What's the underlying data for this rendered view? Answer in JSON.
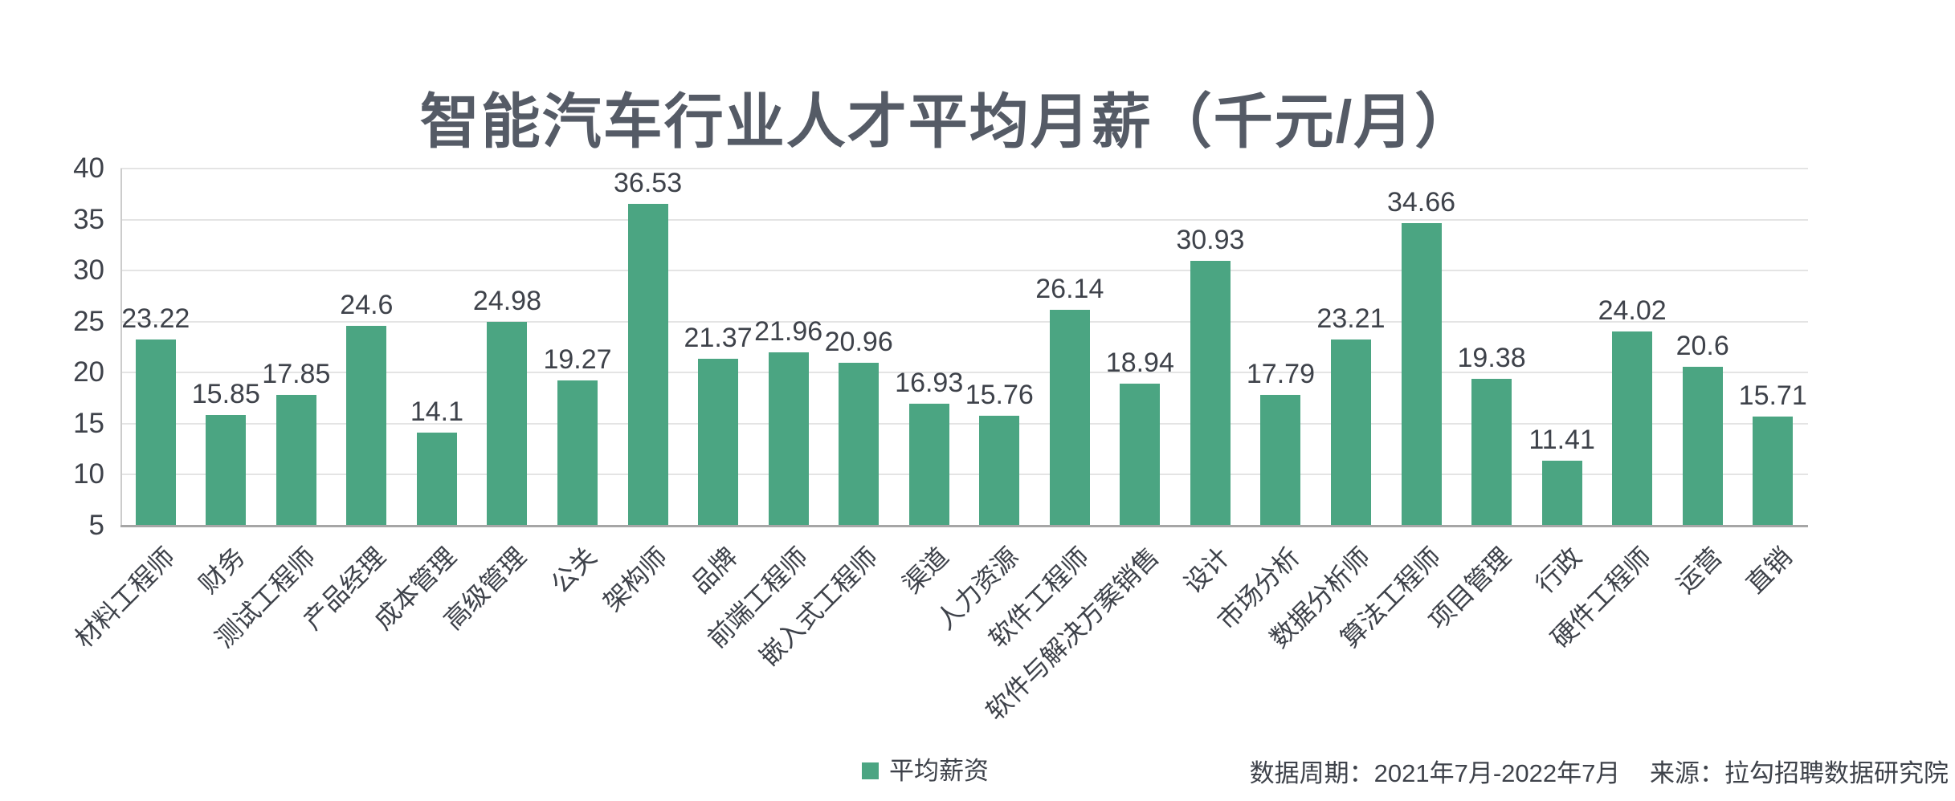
{
  "title": "智能汽车行业人才平均月薪（千元/月）",
  "legend": {
    "label": "平均薪资",
    "color": "#4ba582"
  },
  "footer": {
    "period": "数据周期：2021年7月-2022年7月",
    "source": "来源：拉勾招聘数据研究院"
  },
  "chart_data": {
    "type": "bar",
    "title": "智能汽车行业人才平均月薪（千元/月）",
    "series_name": "平均薪资",
    "categories": [
      "材料工程师",
      "财务",
      "测试工程师",
      "产品经理",
      "成本管理",
      "高级管理",
      "公关",
      "架构师",
      "品牌",
      "前端工程师",
      "嵌入式工程师",
      "渠道",
      "人力资源",
      "软件工程师",
      "软件与解决方案销售",
      "设计",
      "市场分析",
      "数据分析师",
      "算法工程师",
      "项目管理",
      "行政",
      "硬件工程师",
      "运营",
      "直销"
    ],
    "values": [
      23.22,
      15.85,
      17.85,
      24.6,
      14.1,
      24.98,
      19.27,
      36.53,
      21.37,
      21.96,
      20.96,
      16.93,
      15.76,
      26.14,
      18.94,
      30.93,
      17.79,
      23.21,
      34.66,
      19.38,
      11.41,
      24.02,
      20.6,
      15.71
    ],
    "ylabel": "",
    "xlabel": "",
    "ylim": [
      5,
      40
    ],
    "y_ticks": [
      5,
      10,
      15,
      20,
      25,
      30,
      35,
      40
    ],
    "grid": true,
    "value_labels": true,
    "bar_color": "#4ba582",
    "legend_position": "bottom"
  }
}
